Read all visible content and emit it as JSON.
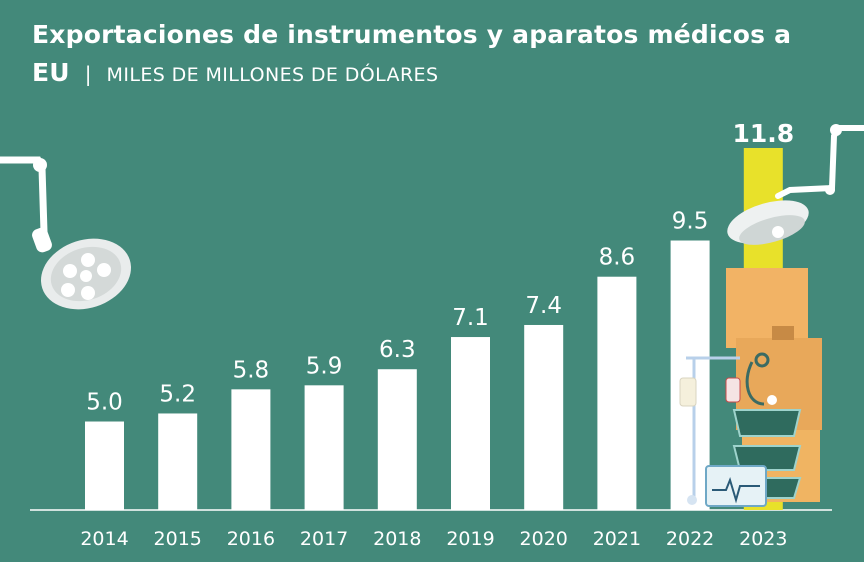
{
  "header": {
    "title_line1": "Exportaciones de instrumentos y aparatos médicos a",
    "title_line2": "EU",
    "separator": "|",
    "subtitle": "MILES DE MILLONES DE DÓLARES"
  },
  "colors": {
    "background": "#43897a",
    "bar": "#ffffff",
    "highlight_bar": "#e8e12a",
    "text": "#ffffff"
  },
  "chart_data": {
    "type": "bar",
    "title": "Exportaciones de instrumentos y aparatos médicos a EU",
    "subtitle": "MILES DE MILLONES DE DÓLARES",
    "xlabel": "",
    "ylabel": "",
    "categories": [
      "2014",
      "2015",
      "2016",
      "2017",
      "2018",
      "2019",
      "2020",
      "2021",
      "2022",
      "2023"
    ],
    "values": [
      5.0,
      5.2,
      5.8,
      5.9,
      6.3,
      7.1,
      7.4,
      8.6,
      9.5,
      11.8
    ],
    "value_labels": [
      "5.0",
      "5.2",
      "5.8",
      "5.9",
      "6.3",
      "7.1",
      "7.4",
      "8.6",
      "9.5",
      "11.8"
    ],
    "highlight_index": 9,
    "ylim": [
      2.8,
      11.8
    ],
    "grid": false
  }
}
